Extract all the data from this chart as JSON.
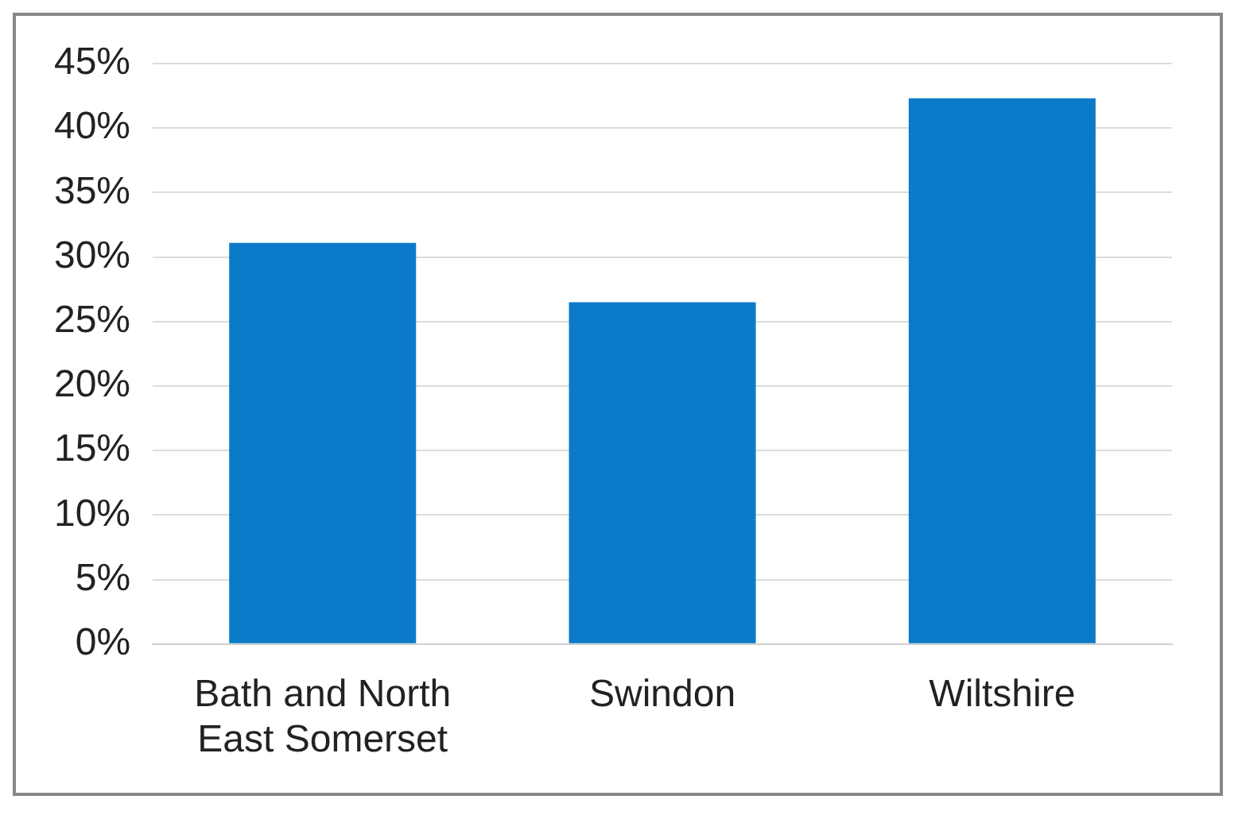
{
  "chart_data": {
    "type": "bar",
    "categories": [
      "Bath and North East Somerset",
      "Swindon",
      "Wiltshire"
    ],
    "values": [
      31.1,
      26.5,
      42.3
    ],
    "color": "#0b7bc9",
    "ylim": [
      0,
      45
    ],
    "yticks": [
      {
        "value": 0,
        "label": "0%"
      },
      {
        "value": 5,
        "label": "5%"
      },
      {
        "value": 10,
        "label": "10%"
      },
      {
        "value": 15,
        "label": "15%"
      },
      {
        "value": 20,
        "label": "20%"
      },
      {
        "value": 25,
        "label": "25%"
      },
      {
        "value": 30,
        "label": "30%"
      },
      {
        "value": 35,
        "label": "35%"
      },
      {
        "value": 40,
        "label": "40%"
      },
      {
        "value": 45,
        "label": "45%"
      }
    ],
    "grid": "y"
  }
}
